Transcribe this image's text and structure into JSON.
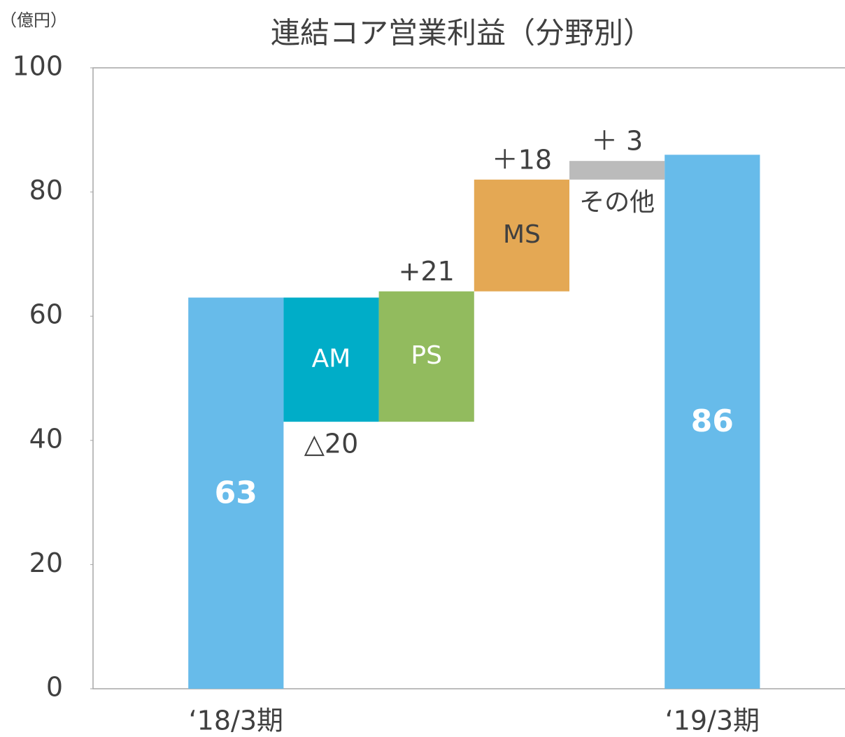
{
  "chart_data": {
    "type": "waterfall",
    "title": "連結コア営業利益（分野別）",
    "y_label": "（億円）",
    "categories": [
      "‘18/3期",
      null,
      null,
      null,
      null,
      "‘19/3期"
    ],
    "segment_names": [
      null,
      "AM",
      "PS",
      "MS",
      "その他",
      null
    ],
    "measure": [
      "total",
      "relative",
      "relative",
      "relative",
      "relative",
      "total"
    ],
    "values": [
      63,
      -20,
      21,
      18,
      3,
      86
    ],
    "value_labels": [
      "63",
      "△20",
      "+21",
      "＋18",
      "＋ 3",
      "86"
    ],
    "colors": [
      "#67bbea",
      "#00adc8",
      "#92bb5e",
      "#e4a854",
      "#bbbbbb",
      "#67bbea"
    ],
    "ylim": [
      0,
      100
    ],
    "yticks": [
      0,
      20,
      40,
      60,
      80,
      100
    ]
  }
}
